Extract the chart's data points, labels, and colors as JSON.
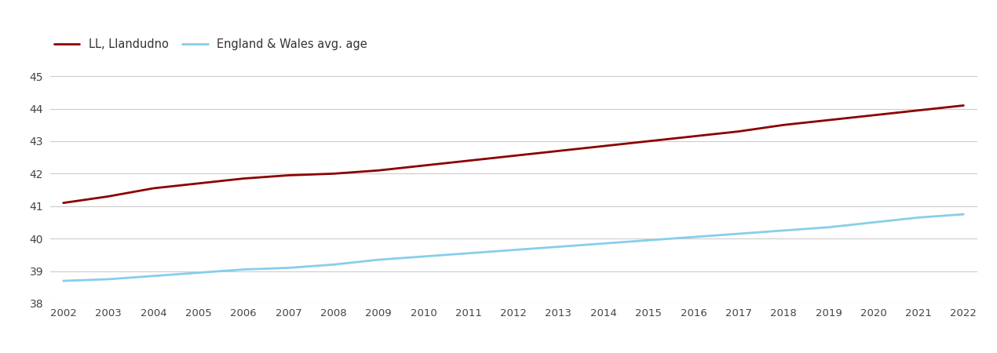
{
  "years": [
    2002,
    2003,
    2004,
    2005,
    2006,
    2007,
    2008,
    2009,
    2010,
    2011,
    2012,
    2013,
    2014,
    2015,
    2016,
    2017,
    2018,
    2019,
    2020,
    2021,
    2022
  ],
  "llandudno": [
    41.1,
    41.3,
    41.55,
    41.7,
    41.85,
    41.95,
    42.0,
    42.1,
    42.25,
    42.4,
    42.55,
    42.7,
    42.85,
    43.0,
    43.15,
    43.3,
    43.5,
    43.65,
    43.8,
    43.95,
    44.1
  ],
  "england_wales": [
    38.7,
    38.75,
    38.85,
    38.95,
    39.05,
    39.1,
    39.2,
    39.35,
    39.45,
    39.55,
    39.65,
    39.75,
    39.85,
    39.95,
    40.05,
    40.15,
    40.25,
    40.35,
    40.5,
    40.65,
    40.75
  ],
  "llandudno_color": "#8B0000",
  "england_wales_color": "#87CEEB",
  "llandudno_label": "LL, Llandudno",
  "england_wales_label": "England & Wales avg. age",
  "ylim": [
    38,
    45.5
  ],
  "yticks": [
    38,
    39,
    40,
    41,
    42,
    43,
    44,
    45
  ],
  "background_color": "#ffffff",
  "grid_color": "#cccccc",
  "linewidth": 2.0
}
